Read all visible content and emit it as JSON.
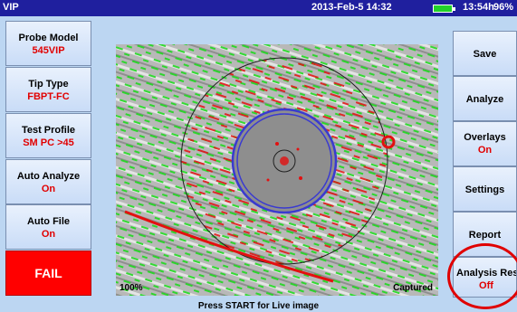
{
  "status_bar": {
    "app_name": "VIP",
    "datetime": "2013-Feb-5 14:32",
    "runtime": "13:54h",
    "battery_percent": "96%"
  },
  "left_panel": {
    "probe_model": {
      "label": "Probe Model",
      "value": "545VIP"
    },
    "tip_type": {
      "label": "Tip Type",
      "value": "FBPT-FC"
    },
    "test_profile": {
      "label": "Test Profile",
      "value": "SM PC >45"
    },
    "auto_analyze": {
      "label": "Auto Analyze",
      "value": "On"
    },
    "auto_file": {
      "label": "Auto File",
      "value": "On"
    },
    "result": {
      "label": "FAIL",
      "color": "#ff0000"
    }
  },
  "right_panel": {
    "save": "Save",
    "analyze": "Analyze",
    "overlays": {
      "label": "Overlays",
      "value": "On"
    },
    "settings": "Settings",
    "report": "Report",
    "analysis_results": {
      "label": "Analysis Results",
      "value": "Off"
    }
  },
  "image": {
    "zoom": "100%",
    "state": "Captured"
  },
  "hint": "Press START for Live image",
  "colors": {
    "status_bar": "#1f1f9e",
    "background": "#bcd6f2",
    "value_text": "#e10000",
    "defect_red": "#e31010",
    "scratch_green": "#1fd81f",
    "zone_blue": "#3a3ad0"
  }
}
